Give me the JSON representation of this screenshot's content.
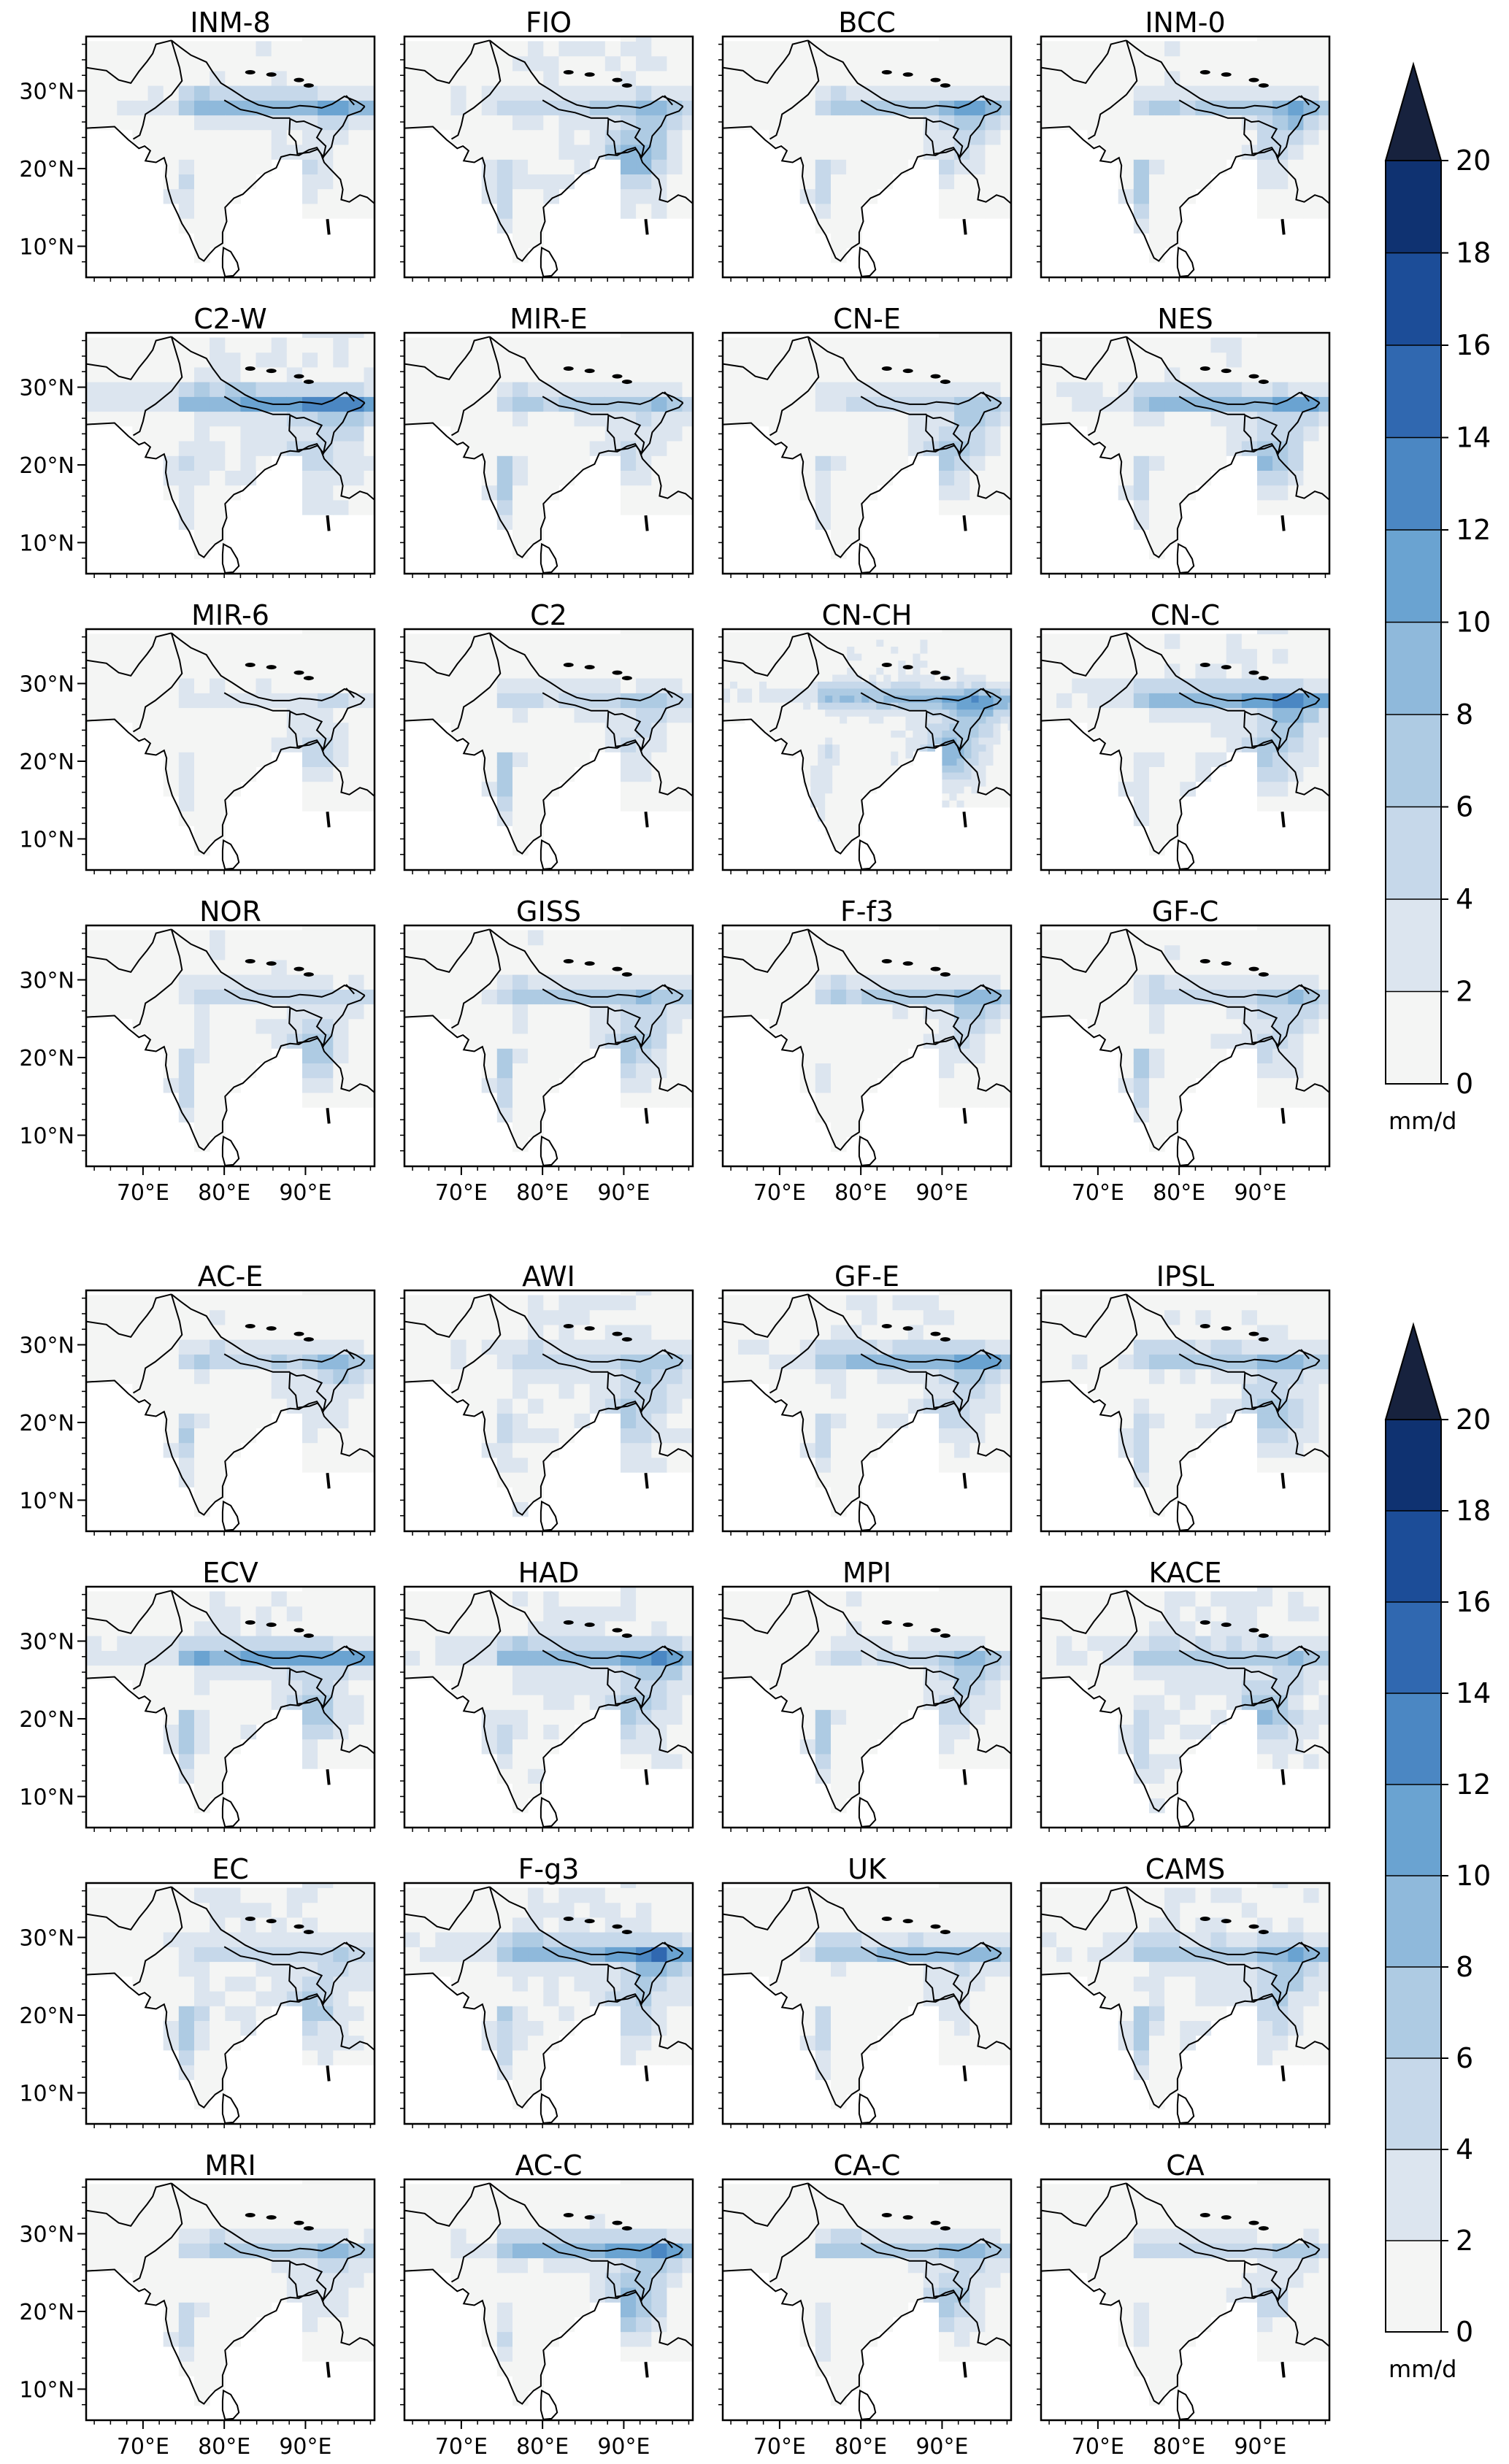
{
  "chart_data": [
    {
      "type": "heatmap",
      "group": "upper",
      "panels": [
        "INM-8",
        "FIO",
        "BCC",
        "INM-0",
        "C2-W",
        "MIR-E",
        "CN-E",
        "NES",
        "MIR-6",
        "C2",
        "CN-CH",
        "CN-C",
        "NOR",
        "GISS",
        "F-f3",
        "GF-C"
      ],
      "xticks": [
        "70°E",
        "80°E",
        "90°E"
      ],
      "yticks": [
        "30°N",
        "20°N",
        "10°N"
      ],
      "colorbar": {
        "ticks": [
          0,
          2,
          4,
          6,
          8,
          10,
          12,
          14,
          16,
          18,
          20
        ],
        "unit": "mm/d",
        "extend": "max",
        "range": [
          0,
          20
        ]
      }
    },
    {
      "type": "heatmap",
      "group": "lower",
      "panels": [
        "AC-E",
        "AWI",
        "GF-E",
        "IPSL",
        "ECV",
        "HAD",
        "MPI",
        "KACE",
        "EC",
        "F-g3",
        "UK",
        "CAMS",
        "MRI",
        "AC-C",
        "CA-C",
        "CA"
      ],
      "xticks": [
        "70°E",
        "80°E",
        "90°E"
      ],
      "yticks": [
        "30°N",
        "20°N",
        "10°N"
      ],
      "colorbar": {
        "ticks": [
          0,
          2,
          4,
          6,
          8,
          10,
          12,
          14,
          16,
          18,
          20
        ],
        "unit": "mm/d",
        "extend": "max",
        "range": [
          0,
          20
        ]
      }
    }
  ],
  "colors": {
    "levels": [
      "#f4f5f4",
      "#dce5ef",
      "#c6d8ea",
      "#aecbe3",
      "#8fb9db",
      "#6aa3d1",
      "#4b87c3",
      "#3068b0",
      "#1c4d98",
      "#0f3271",
      "#17223e"
    ]
  }
}
